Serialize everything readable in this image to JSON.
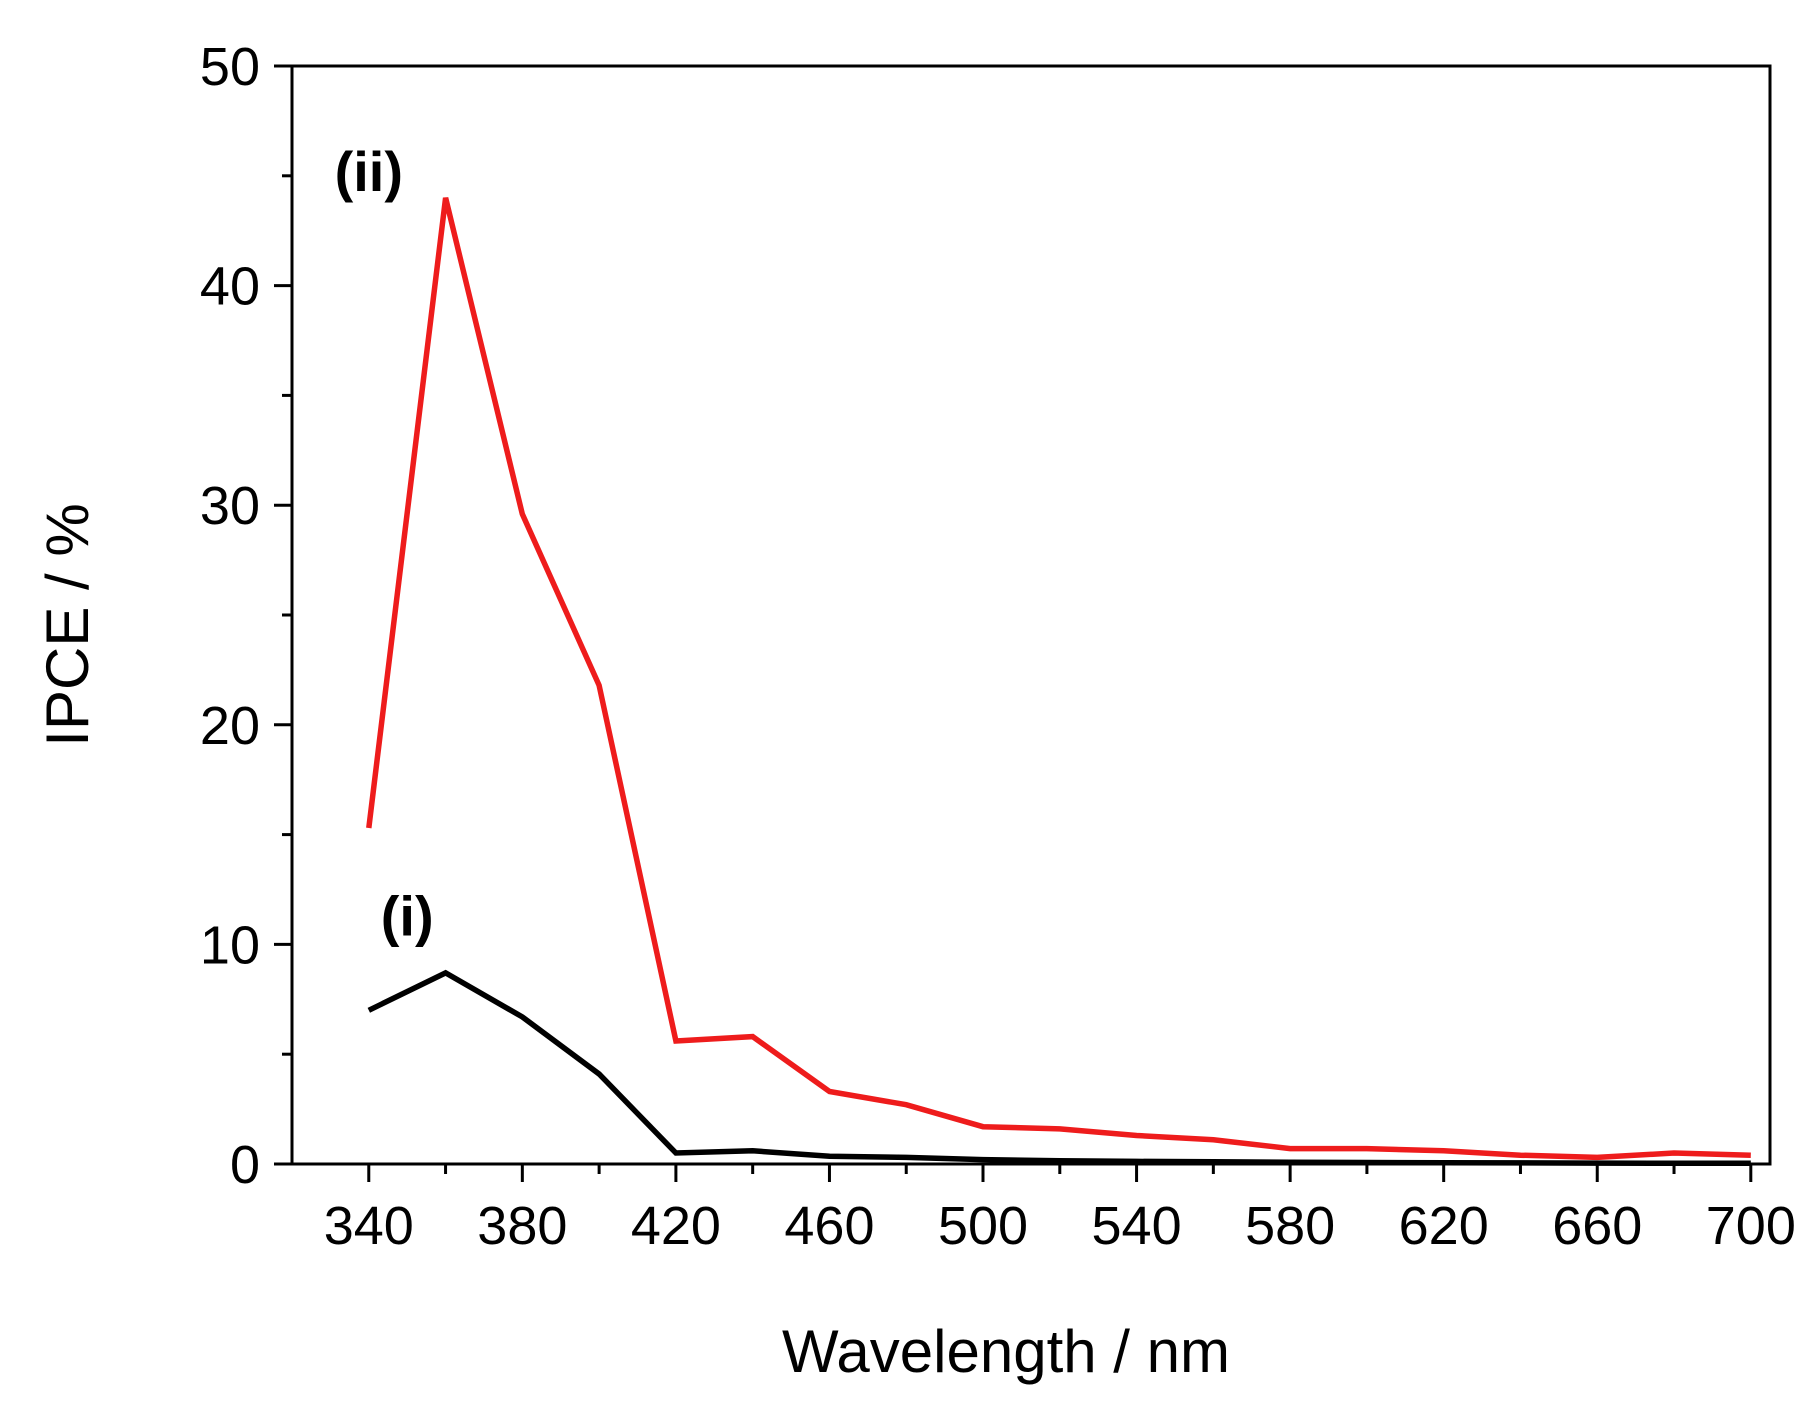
{
  "chart_data": {
    "type": "line",
    "title": "",
    "xlabel": "Wavelength / nm",
    "ylabel": "IPCE / %",
    "xlim": [
      320,
      705
    ],
    "ylim": [
      0,
      50
    ],
    "x_ticks": [
      340,
      380,
      420,
      460,
      500,
      540,
      580,
      620,
      660,
      700
    ],
    "y_ticks": [
      0,
      10,
      20,
      30,
      40,
      50
    ],
    "grid": false,
    "legend": "none",
    "x": [
      340,
      360,
      380,
      400,
      420,
      440,
      460,
      480,
      500,
      520,
      540,
      560,
      580,
      600,
      620,
      640,
      660,
      680,
      700
    ],
    "series": [
      {
        "name": "(i)",
        "color": "#000000",
        "values": [
          7.0,
          8.7,
          6.7,
          4.1,
          0.5,
          0.6,
          0.35,
          0.3,
          0.2,
          0.15,
          0.12,
          0.1,
          0.08,
          0.07,
          0.06,
          0.05,
          0.04,
          0.03,
          0.03
        ]
      },
      {
        "name": "(ii)",
        "color": "#ee1c1c",
        "values": [
          15.3,
          44.0,
          29.6,
          21.8,
          5.6,
          5.8,
          3.3,
          2.7,
          1.7,
          1.6,
          1.3,
          1.1,
          0.7,
          0.7,
          0.6,
          0.4,
          0.3,
          0.5,
          0.4
        ]
      }
    ],
    "annotations": [
      {
        "text": "(i)",
        "series": 0,
        "x": 350,
        "y": 10.4
      },
      {
        "text": "(ii)",
        "series": 1,
        "x": 340,
        "y": 44.3
      }
    ]
  }
}
